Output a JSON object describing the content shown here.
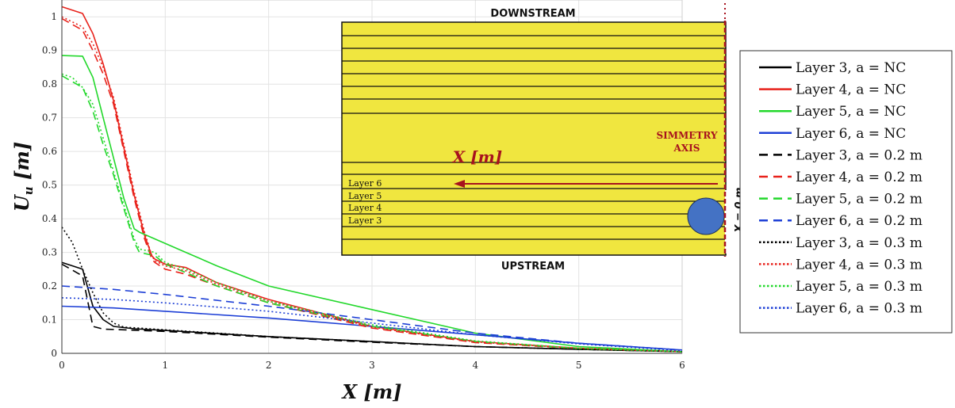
{
  "chart_data": {
    "type": "line",
    "xlabel": "X [m]",
    "ylabel": "U_u [m]",
    "xlim": [
      0,
      6
    ],
    "ylim": [
      0,
      1.05
    ],
    "xticks": [
      "0",
      "1",
      "2",
      "3",
      "4",
      "5",
      "6"
    ],
    "yticks": [
      "0",
      "0.1",
      "0.2",
      "0.3",
      "0.4",
      "0.5",
      "0.6",
      "0.7",
      "0.8",
      "0.9",
      "1"
    ],
    "grid": true,
    "legend_position": "right",
    "series": [
      {
        "name": "Layer 3, a = NC",
        "color": "#000000",
        "dash": "solid",
        "x": [
          0,
          0.2,
          0.3,
          0.4,
          0.5,
          0.7,
          1,
          2,
          3,
          4,
          5,
          6
        ],
        "y": [
          0.27,
          0.25,
          0.14,
          0.1,
          0.08,
          0.073,
          0.068,
          0.05,
          0.035,
          0.02,
          0.012,
          0.005
        ]
      },
      {
        "name": "Layer 4, a = NC",
        "color": "#e8221b",
        "dash": "solid",
        "x": [
          0,
          0.2,
          0.3,
          0.4,
          0.5,
          0.6,
          0.7,
          0.8,
          0.87,
          0.9,
          1,
          1.2,
          1.5,
          2,
          3,
          4,
          5,
          6
        ],
        "y": [
          1.03,
          1.01,
          0.95,
          0.86,
          0.75,
          0.61,
          0.47,
          0.35,
          0.29,
          0.28,
          0.265,
          0.255,
          0.21,
          0.16,
          0.08,
          0.035,
          0.015,
          0.005
        ]
      },
      {
        "name": "Layer 5, a = NC",
        "color": "#22d82b",
        "dash": "solid",
        "x": [
          0,
          0.2,
          0.3,
          0.4,
          0.5,
          0.6,
          0.7,
          0.75,
          0.9,
          1.2,
          1.5,
          2,
          3,
          4,
          5,
          6
        ],
        "y": [
          0.885,
          0.883,
          0.82,
          0.7,
          0.58,
          0.46,
          0.37,
          0.36,
          0.34,
          0.3,
          0.26,
          0.2,
          0.13,
          0.06,
          0.02,
          0.005
        ]
      },
      {
        "name": "Layer 6, a = NC",
        "color": "#1d3fd6",
        "dash": "solid",
        "x": [
          0,
          0.5,
          1,
          2,
          3,
          4,
          5,
          6
        ],
        "y": [
          0.14,
          0.135,
          0.125,
          0.105,
          0.08,
          0.055,
          0.03,
          0.01
        ]
      },
      {
        "name": "Layer 3, a = 0.2 m",
        "color": "#000000",
        "dash": "dashed",
        "x": [
          0,
          0.2,
          0.3,
          0.4,
          0.6,
          1,
          2,
          3,
          4,
          5,
          6
        ],
        "y": [
          0.265,
          0.23,
          0.08,
          0.072,
          0.07,
          0.065,
          0.048,
          0.033,
          0.02,
          0.012,
          0.005
        ]
      },
      {
        "name": "Layer 4, a = 0.2 m",
        "color": "#e8221b",
        "dash": "dashed",
        "x": [
          0,
          0.2,
          0.3,
          0.4,
          0.5,
          0.6,
          0.7,
          0.8,
          0.87,
          0.9,
          1,
          1.2,
          1.5,
          2,
          3,
          4,
          5,
          6
        ],
        "y": [
          0.995,
          0.96,
          0.9,
          0.83,
          0.74,
          0.6,
          0.46,
          0.34,
          0.28,
          0.27,
          0.25,
          0.235,
          0.2,
          0.15,
          0.075,
          0.032,
          0.014,
          0.005
        ]
      },
      {
        "name": "Layer 5, a = 0.2 m",
        "color": "#22d82b",
        "dash": "dashed",
        "x": [
          0,
          0.2,
          0.3,
          0.4,
          0.5,
          0.6,
          0.7,
          0.75,
          0.9,
          1,
          1.2,
          1.5,
          2,
          3,
          4,
          5,
          6
        ],
        "y": [
          0.825,
          0.79,
          0.72,
          0.62,
          0.53,
          0.43,
          0.33,
          0.3,
          0.29,
          0.265,
          0.24,
          0.2,
          0.15,
          0.08,
          0.035,
          0.014,
          0.005
        ]
      },
      {
        "name": "Layer 6, a = 0.2 m",
        "color": "#1d3fd6",
        "dash": "dashed",
        "x": [
          0,
          0.5,
          1,
          2,
          3,
          4,
          5,
          6
        ],
        "y": [
          0.2,
          0.19,
          0.175,
          0.14,
          0.1,
          0.06,
          0.03,
          0.01
        ]
      },
      {
        "name": "Layer 3, a = 0.3 m",
        "color": "#000000",
        "dash": "dotted",
        "x": [
          0,
          0.1,
          0.2,
          0.3,
          0.4,
          0.5,
          0.6,
          1,
          2,
          3,
          4,
          5,
          6
        ],
        "y": [
          0.375,
          0.33,
          0.25,
          0.18,
          0.12,
          0.09,
          0.078,
          0.07,
          0.05,
          0.035,
          0.02,
          0.012,
          0.005
        ]
      },
      {
        "name": "Layer 4, a = 0.3 m",
        "color": "#e8221b",
        "dash": "dotted",
        "x": [
          0,
          0.2,
          0.3,
          0.4,
          0.5,
          0.6,
          0.7,
          0.8,
          0.87,
          0.9,
          1,
          1.2,
          1.5,
          2,
          3,
          4,
          5,
          6
        ],
        "y": [
          1.0,
          0.97,
          0.92,
          0.85,
          0.76,
          0.62,
          0.48,
          0.36,
          0.29,
          0.275,
          0.26,
          0.245,
          0.205,
          0.155,
          0.078,
          0.034,
          0.015,
          0.005
        ]
      },
      {
        "name": "Layer 5, a = 0.3 m",
        "color": "#22d82b",
        "dash": "dotted",
        "x": [
          0,
          0.1,
          0.2,
          0.3,
          0.4,
          0.5,
          0.6,
          0.7,
          0.75,
          0.9,
          1,
          1.2,
          1.5,
          2,
          3,
          4,
          5,
          6
        ],
        "y": [
          0.83,
          0.82,
          0.79,
          0.74,
          0.64,
          0.54,
          0.44,
          0.34,
          0.31,
          0.3,
          0.27,
          0.25,
          0.21,
          0.155,
          0.085,
          0.037,
          0.015,
          0.005
        ]
      },
      {
        "name": "Layer 6, a = 0.3 m",
        "color": "#1d3fd6",
        "dash": "dotted",
        "x": [
          0,
          0.5,
          1,
          2,
          3,
          4,
          5,
          6
        ],
        "y": [
          0.165,
          0.16,
          0.15,
          0.125,
          0.09,
          0.055,
          0.028,
          0.008
        ]
      }
    ]
  },
  "inset": {
    "top_label": "DOWNSTREAM",
    "bottom_label": "UPSTREAM",
    "axis_label": "SIMMETRY\nAXIS",
    "arrow_label": "X [m]",
    "zero_label": "X = 0 m",
    "layer_labels": [
      "Layer 6",
      "Layer 5",
      "Layer 4",
      "Layer 3"
    ],
    "fill_color": "#f0e63f",
    "circle_color": "#4472c4"
  }
}
